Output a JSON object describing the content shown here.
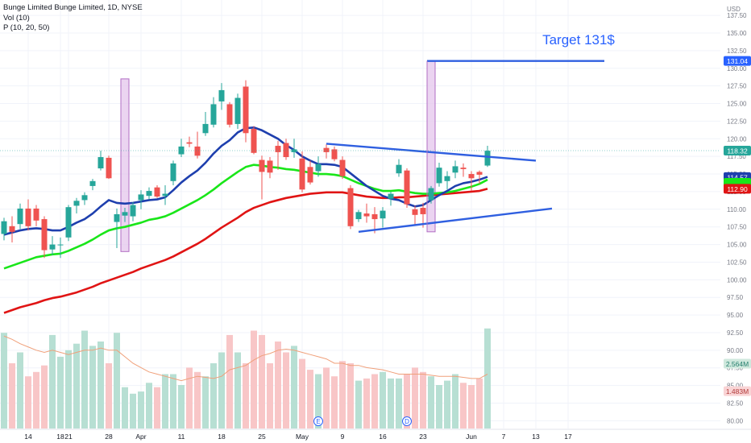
{
  "legend": {
    "title": "Bunge Limited Bunge Limited, 1D, NYSE",
    "volume": "Vol (10)",
    "indicator": "P (10, 20, 50)"
  },
  "annotation": {
    "text": "Target 131$",
    "color": "#2962ff"
  },
  "colors": {
    "up": "#26a69a",
    "down": "#ef5350",
    "vol_up": "#b7dfd3",
    "vol_down": "#f8c6c7",
    "ma_blue": "#1e3fae",
    "ma_green": "#19e619",
    "ma_red": "#e01414",
    "trend": "#2f5fe0",
    "highlight": "#e4c6ec",
    "highlight_border": "#b26ec4",
    "vol_ma": "#f0a07a"
  },
  "chart_data": {
    "type": "candlestick",
    "price_axis": {
      "unit": "USD",
      "ylim": [
        78.9,
        139.0
      ],
      "ticks": [
        "137.50",
        "135.00",
        "132.50",
        "130.00",
        "127.50",
        "125.00",
        "122.50",
        "120.00",
        "117.50",
        "115.00",
        "112.50",
        "110.00",
        "107.50",
        "105.00",
        "102.50",
        "100.00",
        "97.50",
        "95.00",
        "92.50",
        "90.00",
        "87.50",
        "85.00",
        "82.50",
        "80.00"
      ]
    },
    "x_axis": {
      "labels": [
        {
          "text": "14",
          "index": 3
        },
        {
          "text": "18",
          "index": 7
        },
        {
          "text": "21",
          "index": 8
        },
        {
          "text": "28",
          "index": 13
        },
        {
          "text": "Apr",
          "index": 17
        },
        {
          "text": "11",
          "index": 22
        },
        {
          "text": "18",
          "index": 27
        },
        {
          "text": "25",
          "index": 32
        },
        {
          "text": "May",
          "index": 37
        },
        {
          "text": "9",
          "index": 42
        },
        {
          "text": "16",
          "index": 47
        },
        {
          "text": "23",
          "index": 52
        },
        {
          "text": "Jun",
          "index": 58
        },
        {
          "text": "7",
          "index": 62
        },
        {
          "text": "13",
          "index": 66
        },
        {
          "text": "17",
          "index": 70
        }
      ]
    },
    "candles": [
      {
        "o": 106.5,
        "h": 108.8,
        "l": 105.6,
        "c": 108.3
      },
      {
        "o": 107.6,
        "h": 109.0,
        "l": 105.3,
        "c": 106.8
      },
      {
        "o": 107.9,
        "h": 110.8,
        "l": 107.2,
        "c": 110.1
      },
      {
        "o": 110.1,
        "h": 111.4,
        "l": 107.0,
        "c": 107.6
      },
      {
        "o": 110.1,
        "h": 110.6,
        "l": 107.6,
        "c": 108.4
      },
      {
        "o": 108.6,
        "h": 109.0,
        "l": 103.1,
        "c": 104.2
      },
      {
        "o": 104.3,
        "h": 106.2,
        "l": 103.5,
        "c": 105.0
      },
      {
        "o": 105.0,
        "h": 106.0,
        "l": 103.1,
        "c": 105.0
      },
      {
        "o": 106.0,
        "h": 110.6,
        "l": 105.5,
        "c": 110.3
      },
      {
        "o": 110.5,
        "h": 111.6,
        "l": 109.4,
        "c": 111.2
      },
      {
        "o": 111.3,
        "h": 112.4,
        "l": 110.6,
        "c": 112.0
      },
      {
        "o": 113.3,
        "h": 114.3,
        "l": 112.7,
        "c": 114.0
      },
      {
        "o": 115.8,
        "h": 118.3,
        "l": 115.5,
        "c": 117.4
      },
      {
        "o": 117.3,
        "h": 117.6,
        "l": 114.3,
        "c": 114.4
      },
      {
        "o": 108.2,
        "h": 110.1,
        "l": 104.5,
        "c": 109.3
      },
      {
        "o": 109.1,
        "h": 110.2,
        "l": 108.2,
        "c": 109.6
      },
      {
        "o": 109.0,
        "h": 111.0,
        "l": 108.3,
        "c": 110.6
      },
      {
        "o": 111.3,
        "h": 112.7,
        "l": 110.0,
        "c": 112.1
      },
      {
        "o": 111.9,
        "h": 113.1,
        "l": 111.4,
        "c": 112.6
      },
      {
        "o": 113.1,
        "h": 113.4,
        "l": 111.6,
        "c": 111.8
      },
      {
        "o": 111.9,
        "h": 113.4,
        "l": 110.6,
        "c": 112.2
      },
      {
        "o": 114.0,
        "h": 116.9,
        "l": 113.4,
        "c": 116.5
      },
      {
        "o": 117.8,
        "h": 120.0,
        "l": 117.4,
        "c": 118.9
      },
      {
        "o": 119.5,
        "h": 120.3,
        "l": 118.8,
        "c": 119.3
      },
      {
        "o": 118.9,
        "h": 121.0,
        "l": 117.2,
        "c": 117.6
      },
      {
        "o": 120.8,
        "h": 123.8,
        "l": 120.4,
        "c": 122.1
      },
      {
        "o": 122.0,
        "h": 125.9,
        "l": 121.6,
        "c": 124.9
      },
      {
        "o": 125.3,
        "h": 127.9,
        "l": 124.1,
        "c": 126.9
      },
      {
        "o": 124.9,
        "h": 125.2,
        "l": 121.6,
        "c": 122.0
      },
      {
        "o": 122.1,
        "h": 126.4,
        "l": 121.4,
        "c": 125.8
      },
      {
        "o": 127.4,
        "h": 128.3,
        "l": 119.5,
        "c": 120.8
      },
      {
        "o": 121.4,
        "h": 121.8,
        "l": 117.8,
        "c": 118.0
      },
      {
        "o": 117.0,
        "h": 117.6,
        "l": 111.4,
        "c": 115.3
      },
      {
        "o": 116.9,
        "h": 117.4,
        "l": 114.4,
        "c": 115.2
      },
      {
        "o": 119.0,
        "h": 119.7,
        "l": 115.6,
        "c": 118.1
      },
      {
        "o": 119.4,
        "h": 120.0,
        "l": 117.0,
        "c": 117.4
      },
      {
        "o": 118.1,
        "h": 120.0,
        "l": 117.3,
        "c": 118.5
      },
      {
        "o": 117.2,
        "h": 118.2,
        "l": 112.4,
        "c": 112.8
      },
      {
        "o": 116.0,
        "h": 116.9,
        "l": 113.5,
        "c": 113.8
      },
      {
        "o": 115.4,
        "h": 117.5,
        "l": 114.6,
        "c": 116.4
      },
      {
        "o": 118.7,
        "h": 119.2,
        "l": 117.2,
        "c": 118.1
      },
      {
        "o": 118.5,
        "h": 118.9,
        "l": 116.8,
        "c": 117.1
      },
      {
        "o": 117.0,
        "h": 117.5,
        "l": 114.3,
        "c": 114.7
      },
      {
        "o": 113.0,
        "h": 113.4,
        "l": 107.2,
        "c": 107.6
      },
      {
        "o": 108.6,
        "h": 109.9,
        "l": 108.2,
        "c": 109.6
      },
      {
        "o": 109.4,
        "h": 110.8,
        "l": 108.1,
        "c": 109.0
      },
      {
        "o": 109.3,
        "h": 110.3,
        "l": 106.6,
        "c": 108.6
      },
      {
        "o": 108.7,
        "h": 110.3,
        "l": 107.4,
        "c": 109.8
      },
      {
        "o": 111.5,
        "h": 112.5,
        "l": 110.5,
        "c": 112.2
      },
      {
        "o": 115.1,
        "h": 117.1,
        "l": 114.6,
        "c": 116.3
      },
      {
        "o": 115.5,
        "h": 115.8,
        "l": 110.2,
        "c": 110.7
      },
      {
        "o": 110.0,
        "h": 110.5,
        "l": 107.7,
        "c": 109.2
      },
      {
        "o": 110.2,
        "h": 110.9,
        "l": 107.4,
        "c": 109.3
      },
      {
        "o": 111.3,
        "h": 113.3,
        "l": 110.8,
        "c": 113.0
      },
      {
        "o": 113.7,
        "h": 116.6,
        "l": 113.2,
        "c": 115.9
      },
      {
        "o": 114.0,
        "h": 115.4,
        "l": 112.8,
        "c": 114.7
      },
      {
        "o": 115.2,
        "h": 116.9,
        "l": 114.4,
        "c": 116.1
      },
      {
        "o": 115.9,
        "h": 116.5,
        "l": 114.6,
        "c": 115.7
      },
      {
        "o": 115.0,
        "h": 115.4,
        "l": 112.6,
        "c": 114.4
      },
      {
        "o": 115.3,
        "h": 115.5,
        "l": 113.6,
        "c": 114.9
      },
      {
        "o": 116.2,
        "h": 119.0,
        "l": 116.0,
        "c": 118.3
      }
    ],
    "ma10": [
      106.4,
      106.7,
      107.0,
      107.2,
      107.3,
      107.2,
      107.0,
      107.0,
      107.5,
      108.1,
      108.6,
      109.4,
      110.4,
      111.3,
      110.9,
      110.8,
      110.9,
      111.1,
      111.3,
      111.4,
      111.7,
      112.7,
      113.8,
      114.7,
      115.5,
      116.6,
      117.9,
      119.0,
      119.8,
      120.9,
      121.5,
      121.6,
      121.2,
      120.6,
      120.0,
      119.1,
      118.4,
      117.5,
      116.9,
      116.4,
      116.4,
      116.3,
      116.0,
      115.1,
      114.2,
      113.3,
      112.6,
      111.9,
      111.5,
      111.3,
      110.8,
      110.4,
      110.6,
      111.3,
      112.0,
      112.6,
      113.3,
      113.7,
      113.9,
      114.2,
      114.6
    ],
    "ma20": [
      101.6,
      102.0,
      102.4,
      102.8,
      103.2,
      103.4,
      103.6,
      103.7,
      104.1,
      104.6,
      105.1,
      105.7,
      106.4,
      107.0,
      107.3,
      107.5,
      107.8,
      108.1,
      108.5,
      108.7,
      109.0,
      109.5,
      110.1,
      110.7,
      111.3,
      112.0,
      112.8,
      113.7,
      114.5,
      115.3,
      116.0,
      116.3,
      116.2,
      116.0,
      115.9,
      115.7,
      115.6,
      115.4,
      115.2,
      115.0,
      115.0,
      114.9,
      114.7,
      114.2,
      113.7,
      113.3,
      112.9,
      112.6,
      112.6,
      112.7,
      112.5,
      112.3,
      112.2,
      112.2,
      112.3,
      112.4,
      112.6,
      112.9,
      113.2,
      113.6,
      114.2
    ],
    "ma50": [
      95.3,
      95.7,
      96.1,
      96.4,
      96.7,
      97.1,
      97.4,
      97.6,
      97.9,
      98.2,
      98.6,
      99.0,
      99.5,
      99.9,
      100.3,
      100.7,
      101.1,
      101.6,
      102.0,
      102.4,
      102.8,
      103.3,
      103.9,
      104.5,
      105.1,
      105.8,
      106.6,
      107.4,
      108.1,
      108.8,
      109.6,
      110.2,
      110.6,
      111.0,
      111.3,
      111.6,
      111.8,
      112.0,
      112.2,
      112.3,
      112.4,
      112.4,
      112.4,
      112.2,
      112.0,
      111.8,
      111.7,
      111.6,
      111.6,
      111.7,
      111.7,
      111.8,
      111.9,
      112.0,
      112.1,
      112.2,
      112.3,
      112.4,
      112.5,
      112.6,
      112.9
    ],
    "volume_ratio": [
      0.88,
      0.6,
      0.7,
      0.48,
      0.52,
      0.58,
      0.86,
      0.66,
      0.72,
      0.78,
      0.9,
      0.76,
      0.8,
      0.6,
      0.88,
      0.38,
      0.32,
      0.34,
      0.42,
      0.38,
      0.5,
      0.5,
      0.4,
      0.56,
      0.52,
      0.48,
      0.6,
      0.7,
      0.86,
      0.7,
      0.6,
      0.9,
      0.86,
      0.6,
      0.8,
      0.7,
      0.76,
      0.64,
      0.54,
      0.5,
      0.56,
      0.48,
      0.62,
      0.6,
      0.44,
      0.46,
      0.5,
      0.52,
      0.46,
      0.46,
      0.5,
      0.56,
      0.52,
      0.48,
      0.4,
      0.44,
      0.5,
      0.42,
      0.4,
      0.46,
      0.92
    ],
    "volume_ma_ratio": [
      0.85,
      0.82,
      0.78,
      0.75,
      0.72,
      0.7,
      0.72,
      0.7,
      0.68,
      0.7,
      0.72,
      0.72,
      0.74,
      0.72,
      0.72,
      0.66,
      0.6,
      0.56,
      0.52,
      0.5,
      0.48,
      0.46,
      0.44,
      0.46,
      0.48,
      0.47,
      0.46,
      0.48,
      0.54,
      0.56,
      0.58,
      0.63,
      0.67,
      0.69,
      0.72,
      0.73,
      0.72,
      0.7,
      0.68,
      0.66,
      0.64,
      0.6,
      0.6,
      0.58,
      0.58,
      0.56,
      0.55,
      0.54,
      0.52,
      0.5,
      0.5,
      0.5,
      0.5,
      0.49,
      0.48,
      0.48,
      0.48,
      0.47,
      0.46,
      0.46,
      0.5
    ],
    "current_price_label": "118.32",
    "target_label": "131.04",
    "ma_labels": {
      "blue": "114.57",
      "green": "",
      "red": "112.90"
    },
    "volume_labels": {
      "upper": "2.564M",
      "lower": "1.483M"
    },
    "event_markers": [
      {
        "text": "E",
        "index": 39
      },
      {
        "text": "D",
        "index": 50
      }
    ],
    "trend_lines": [
      {
        "name": "upper",
        "from": {
          "index": 40,
          "price": 119.3
        },
        "to": {
          "index": 66,
          "price": 116.9
        }
      },
      {
        "name": "lower",
        "from": {
          "index": 44,
          "price": 106.8
        },
        "to": {
          "index": 68,
          "price": 110.1
        }
      },
      {
        "name": "target",
        "from": {
          "index": 52.5,
          "price": 131.04
        },
        "to": {
          "index": 74.5,
          "price": 131.04
        }
      }
    ],
    "highlights": [
      {
        "index": 15,
        "price_top": 128.5,
        "price_bottom": 104.0
      },
      {
        "index": 53,
        "price_top": 131.0,
        "price_bottom": 106.8
      }
    ]
  }
}
